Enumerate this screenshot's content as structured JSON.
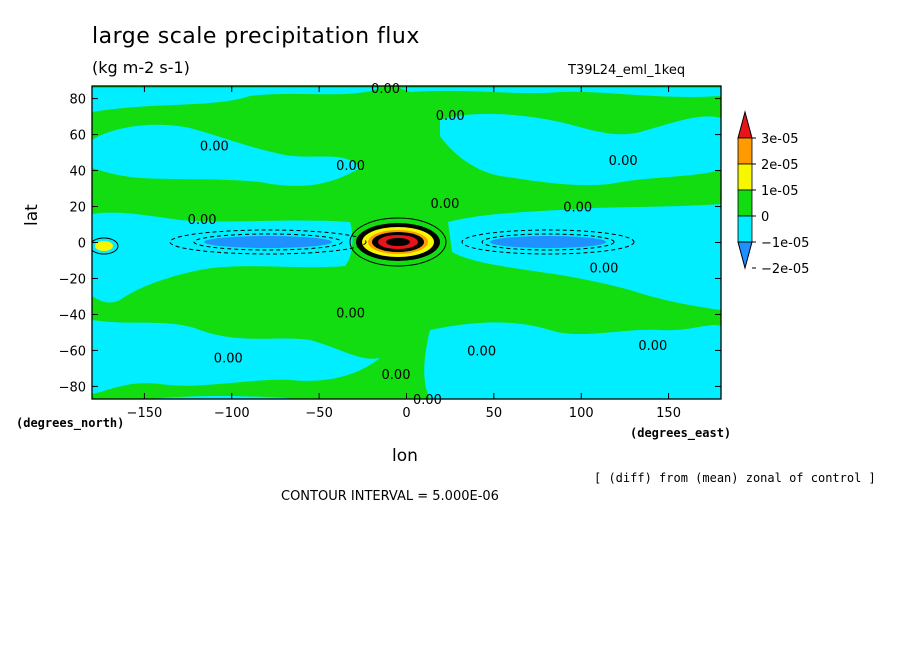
{
  "chart_data": {
    "type": "heatmap",
    "title": "large scale precipitation flux",
    "units": "(kg m-2 s-1)",
    "run_label": "T39L24_eml_1keq",
    "xlabel": "lon",
    "ylabel": "lat",
    "x_unit_label": "(degrees_east)",
    "y_unit_label": "(degrees_north)",
    "xlim": [
      -180,
      180
    ],
    "ylim": [
      -87,
      87
    ],
    "x_ticks": [
      -150,
      -100,
      -50,
      0,
      50,
      100,
      150
    ],
    "y_ticks": [
      -80,
      -60,
      -40,
      -20,
      0,
      20,
      40,
      60,
      80
    ],
    "colorbar": {
      "levels": [
        "3e-05",
        "2e-05",
        "1e-05",
        "0",
        "-1e-05",
        "-2e-05"
      ],
      "colors": [
        "#e8141c",
        "#ff9a00",
        "#f7f700",
        "#11dd11",
        "#00eeff",
        "#1e90ff"
      ]
    },
    "contour_labels": [
      {
        "text": "0.00",
        "lon": -12,
        "lat": 86
      },
      {
        "text": "0.00",
        "lon": 25,
        "lat": 71
      },
      {
        "text": "0.00",
        "lon": -110,
        "lat": 54
      },
      {
        "text": "0.00",
        "lon": -32,
        "lat": 43
      },
      {
        "text": "0.00",
        "lon": 124,
        "lat": 46
      },
      {
        "text": "0.00",
        "lon": -117,
        "lat": 13
      },
      {
        "text": "0.00",
        "lon": 22,
        "lat": 22
      },
      {
        "text": "0.00",
        "lon": 98,
        "lat": 20
      },
      {
        "text": "0.00",
        "lon": 113,
        "lat": -14
      },
      {
        "text": "0.00",
        "lon": -32,
        "lat": -39
      },
      {
        "text": "0.00",
        "lon": -102,
        "lat": -64
      },
      {
        "text": "0.00",
        "lon": 43,
        "lat": -60
      },
      {
        "text": "0.00",
        "lon": 141,
        "lat": -57
      },
      {
        "text": "0.00",
        "lon": -6,
        "lat": -73
      },
      {
        "text": "0.00",
        "lon": 12,
        "lat": -87
      }
    ],
    "annotation": "[ (diff) from (mean) zonal of control ]",
    "contour_interval": "CONTOUR INTERVAL = 5.000E-06",
    "background_level": "0",
    "features": [
      {
        "type": "max",
        "level": "3e-05",
        "lon": -5,
        "lat": 0
      },
      {
        "type": "min",
        "level": "-2e-05",
        "lon": -100,
        "lat": 0
      },
      {
        "type": "min",
        "level": "-2e-05",
        "lon": 80,
        "lat": 0
      },
      {
        "type": "max",
        "level": "1e-05",
        "lon": -172,
        "lat": -3
      }
    ]
  }
}
